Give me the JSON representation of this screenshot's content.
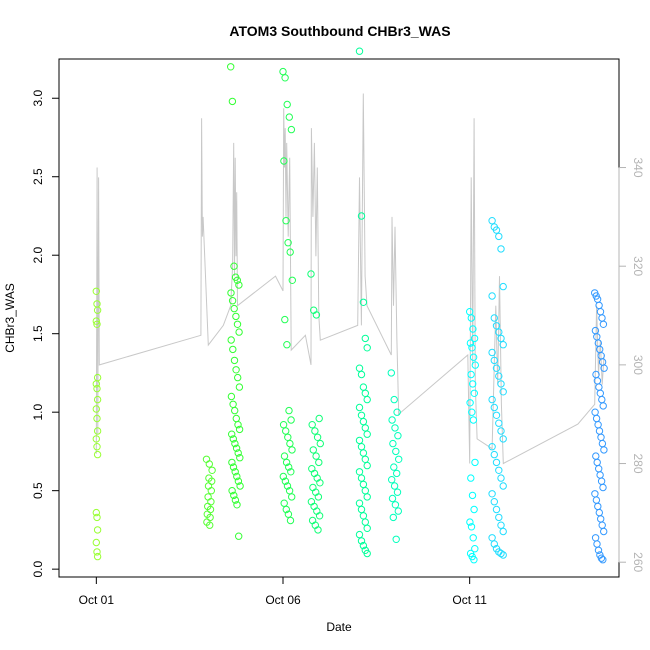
{
  "chart_data": {
    "type": "scatter",
    "title": "ATOM3 Southbound CHBr3_WAS",
    "xlabel": "Date",
    "ylabel": "CHBr3_WAS",
    "x_ticks": [
      {
        "label": "Oct 01",
        "day": 1.0
      },
      {
        "label": "Oct 06",
        "day": 6.0
      },
      {
        "label": "Oct 11",
        "day": 11.0
      }
    ],
    "xlim_days": [
      0.0,
      15.0
    ],
    "y_left": {
      "ticks": [
        "0.0",
        "0.5",
        "1.0",
        "1.5",
        "2.0",
        "2.5",
        "3.0"
      ],
      "lim": [
        -0.05,
        3.25
      ]
    },
    "y_right": {
      "ticks": [
        "260",
        "280",
        "300",
        "320",
        "340"
      ],
      "lim": [
        257,
        362
      ],
      "color": "#b4b4b4"
    },
    "grid": false,
    "point_style": "open circle",
    "point_color_note": "colour shifts from light green to green to cyan to blue along the flight sequence",
    "colors": {
      "lime": "#99ff33",
      "green": "#33ff33",
      "spring": "#00ff99",
      "cyan": "#00ffff",
      "sky": "#33ccff",
      "blue": "#3399ff",
      "trace": "#c8c8c8"
    },
    "series": [
      {
        "group": 1,
        "day_range": [
          1.0,
          1.05
        ],
        "color": "#99ff33",
        "values": [
          1.77,
          1.69,
          1.65,
          1.58,
          1.56,
          1.22,
          1.18,
          1.15,
          1.08,
          1.02,
          0.96,
          0.88,
          0.83,
          0.78,
          0.73,
          0.36,
          0.33,
          0.25,
          0.17,
          0.11,
          0.08
        ]
      },
      {
        "group": 2,
        "day_range": [
          3.95,
          4.1
        ],
        "color": "#55ff33",
        "values": [
          0.7,
          0.67,
          0.63,
          0.58,
          0.56,
          0.53,
          0.5,
          0.46,
          0.43,
          0.4,
          0.38,
          0.35,
          0.33,
          0.3,
          0.28
        ]
      },
      {
        "group": 3,
        "day_range": [
          4.6,
          4.85
        ],
        "color": "#33ff33",
        "values": [
          3.2,
          2.98,
          1.93,
          1.86,
          1.84,
          1.81,
          1.76,
          1.71,
          1.66,
          1.61,
          1.56,
          1.51,
          1.46,
          1.4,
          1.33,
          1.27,
          1.22,
          1.16,
          1.1,
          1.05,
          1.01,
          0.96,
          0.92,
          0.89,
          0.86,
          0.83,
          0.8,
          0.77,
          0.74,
          0.71,
          0.68,
          0.65,
          0.62,
          0.59,
          0.56,
          0.53,
          0.5,
          0.47,
          0.44,
          0.41,
          0.21
        ]
      },
      {
        "group": 4,
        "day_range": [
          6.0,
          6.25
        ],
        "color": "#22ff55",
        "values": [
          3.17,
          3.13,
          2.96,
          2.88,
          2.8,
          2.6,
          2.22,
          2.08,
          2.02,
          1.84,
          1.59,
          1.43,
          1.01,
          0.95,
          0.92,
          0.88,
          0.84,
          0.8,
          0.76,
          0.72,
          0.68,
          0.65,
          0.62,
          0.59,
          0.56,
          0.53,
          0.5,
          0.46,
          0.42,
          0.38,
          0.35,
          0.31
        ]
      },
      {
        "group": 5,
        "day_range": [
          6.75,
          7.0
        ],
        "color": "#11ff77",
        "values": [
          1.88,
          1.65,
          1.62,
          0.96,
          0.92,
          0.88,
          0.84,
          0.8,
          0.76,
          0.72,
          0.68,
          0.64,
          0.61,
          0.58,
          0.55,
          0.52,
          0.49,
          0.46,
          0.43,
          0.4,
          0.37,
          0.34,
          0.31,
          0.28,
          0.25
        ]
      },
      {
        "group": 6,
        "day_range": [
          8.05,
          8.3
        ],
        "color": "#00ff99",
        "values": [
          3.3,
          2.25,
          1.7,
          1.47,
          1.41,
          1.28,
          1.24,
          1.16,
          1.12,
          1.08,
          1.03,
          0.98,
          0.94,
          0.9,
          0.86,
          0.82,
          0.78,
          0.74,
          0.7,
          0.66,
          0.62,
          0.58,
          0.54,
          0.5,
          0.46,
          0.42,
          0.38,
          0.34,
          0.3,
          0.26,
          0.22,
          0.18,
          0.15,
          0.12,
          0.1
        ]
      },
      {
        "group": 7,
        "day_range": [
          8.9,
          9.1
        ],
        "color": "#00ffbb",
        "values": [
          1.25,
          1.08,
          1.0,
          0.95,
          0.9,
          0.85,
          0.8,
          0.75,
          0.7,
          0.65,
          0.61,
          0.57,
          0.53,
          0.49,
          0.45,
          0.41,
          0.37,
          0.33,
          0.19
        ]
      },
      {
        "group": 8,
        "day_range": [
          11.0,
          11.15
        ],
        "color": "#00ffff",
        "values": [
          1.64,
          1.6,
          1.53,
          1.47,
          1.44,
          1.41,
          1.35,
          1.3,
          1.24,
          1.18,
          1.12,
          1.06,
          1.0,
          0.95,
          0.68,
          0.58,
          0.47,
          0.38,
          0.3,
          0.27,
          0.2,
          0.13,
          0.1,
          0.08,
          0.06
        ]
      },
      {
        "group": 9,
        "day_range": [
          11.6,
          11.95
        ],
        "color": "#22ddff",
        "values": [
          2.22,
          2.18,
          2.16,
          2.12,
          2.04,
          1.8,
          1.74,
          1.6,
          1.55,
          1.51,
          1.47,
          1.43,
          1.38,
          1.33,
          1.28,
          1.23,
          1.18,
          1.13,
          1.08,
          1.03,
          0.98,
          0.93,
          0.88,
          0.83,
          0.78,
          0.73,
          0.68,
          0.63,
          0.58,
          0.53,
          0.48,
          0.43,
          0.38,
          0.33,
          0.28,
          0.24,
          0.2,
          0.16,
          0.13,
          0.11,
          0.1,
          0.09
        ]
      },
      {
        "group": 10,
        "day_range": [
          14.35,
          14.6
        ],
        "color": "#3399ff",
        "values": [
          1.76,
          1.74,
          1.72,
          1.68,
          1.64,
          1.6,
          1.56,
          1.52,
          1.48,
          1.44,
          1.4,
          1.36,
          1.32,
          1.28,
          1.24,
          1.2,
          1.16,
          1.12,
          1.08,
          1.04,
          1.0,
          0.96,
          0.92,
          0.88,
          0.84,
          0.8,
          0.76,
          0.72,
          0.68,
          0.64,
          0.6,
          0.56,
          0.52,
          0.48,
          0.44,
          0.4,
          0.36,
          0.32,
          0.28,
          0.24,
          0.2,
          0.16,
          0.12,
          0.09,
          0.07,
          0.06
        ]
      }
    ],
    "trace": {
      "axis": "right",
      "color": "#c8c8c8",
      "path": [
        [
          1.0,
          282
        ],
        [
          1.02,
          340
        ],
        [
          1.04,
          286
        ],
        [
          1.06,
          338
        ],
        [
          1.08,
          300
        ],
        [
          3.8,
          306
        ],
        [
          3.82,
          350
        ],
        [
          3.84,
          326
        ],
        [
          3.86,
          330
        ],
        [
          4.0,
          304
        ],
        [
          4.4,
          308
        ],
        [
          4.6,
          312
        ],
        [
          4.65,
          320
        ],
        [
          4.68,
          345
        ],
        [
          4.7,
          318
        ],
        [
          4.72,
          342
        ],
        [
          4.74,
          322
        ],
        [
          4.76,
          335
        ],
        [
          4.78,
          312
        ],
        [
          5.8,
          318
        ],
        [
          6.0,
          315
        ],
        [
          6.02,
          352
        ],
        [
          6.04,
          340
        ],
        [
          6.06,
          348
        ],
        [
          6.08,
          330
        ],
        [
          6.1,
          345
        ],
        [
          6.14,
          326
        ],
        [
          6.18,
          342
        ],
        [
          6.22,
          303
        ],
        [
          6.6,
          306
        ],
        [
          6.75,
          300
        ],
        [
          6.76,
          348
        ],
        [
          6.8,
          330
        ],
        [
          6.84,
          345
        ],
        [
          6.88,
          322
        ],
        [
          6.92,
          340
        ],
        [
          6.96,
          310
        ],
        [
          7.0,
          305
        ],
        [
          8.0,
          308
        ],
        [
          8.05,
          338
        ],
        [
          8.1,
          308
        ],
        [
          8.15,
          355
        ],
        [
          8.2,
          318
        ],
        [
          8.25,
          312
        ],
        [
          8.9,
          302
        ],
        [
          8.92,
          330
        ],
        [
          8.96,
          312
        ],
        [
          9.0,
          328
        ],
        [
          9.05,
          305
        ],
        [
          9.1,
          290
        ],
        [
          10.95,
          302
        ],
        [
          11.0,
          280
        ],
        [
          11.04,
          338
        ],
        [
          11.08,
          300
        ],
        [
          11.12,
          350
        ],
        [
          11.15,
          296
        ],
        [
          11.2,
          285
        ],
        [
          11.6,
          283
        ],
        [
          11.7,
          312
        ],
        [
          11.75,
          296
        ],
        [
          11.8,
          318
        ],
        [
          11.85,
          292
        ],
        [
          11.9,
          280
        ],
        [
          13.9,
          288
        ],
        [
          14.35,
          292
        ],
        [
          14.4,
          312
        ],
        [
          14.45,
          298
        ],
        [
          14.5,
          305
        ],
        [
          14.55,
          296
        ],
        [
          14.6,
          302
        ]
      ]
    }
  }
}
